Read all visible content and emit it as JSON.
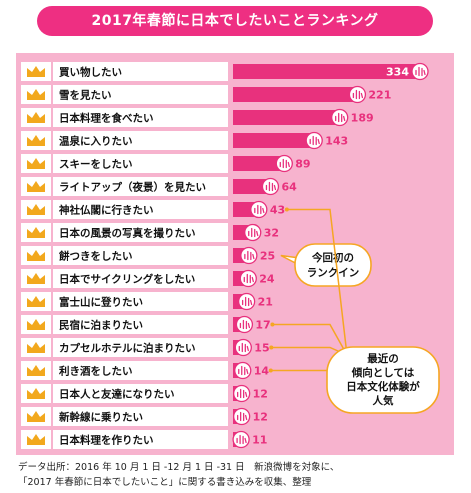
{
  "title": "2017年春節に日本でしたいことランキング",
  "chart_data": {
    "type": "bar",
    "orientation": "horizontal",
    "title": "2017年春節に日本でしたいことランキング",
    "categories": [
      "買い物したい",
      "雪を見たい",
      "日本料理を食べたい",
      "温泉に入りたい",
      "スキーをしたい",
      "ライトアップ（夜景）を見たい",
      "神社仏閣に行きたい",
      "日本の風景の写真を撮りたい",
      "餅つきをしたい",
      "日本でサイクリングをしたい",
      "富士山に登りたい",
      "民宿に泊まりたい",
      "カプセルホテルに泊まりたい",
      "利き酒をしたい",
      "日本人と友達になりたい",
      "新幹線に乗りたい",
      "日本料理を作りたい"
    ],
    "values": [
      334,
      221,
      189,
      143,
      89,
      64,
      43,
      32,
      25,
      24,
      21,
      17,
      15,
      14,
      12,
      12,
      11
    ],
    "annotations": [
      {
        "lines": [
          "今回初の",
          "ランクイン"
        ],
        "targets": [
          "餅つきをしたい"
        ]
      },
      {
        "lines": [
          "最近の",
          "傾向としては",
          "日本文化体験が",
          "人気"
        ],
        "targets": [
          "神社仏閣に行きたい",
          "民宿に泊まりたい",
          "カプセルホテルに泊まりたい",
          "利き酒をしたい"
        ]
      }
    ],
    "colors": {
      "bar": "#e8317d",
      "panel": "#f7b3ce",
      "title_bg": "#ee2f82",
      "crown": "#f2a81d",
      "callout": "#f5a623",
      "hand": "#e8317d"
    }
  },
  "source": {
    "line1": "データ出所：2016 年 10 月 1 日 -12 月 1 日 -31 日　新浪微博を対象に、",
    "line2": "「2017 年春節に日本でしたいこと」に関する書き込みを収集、整理"
  }
}
